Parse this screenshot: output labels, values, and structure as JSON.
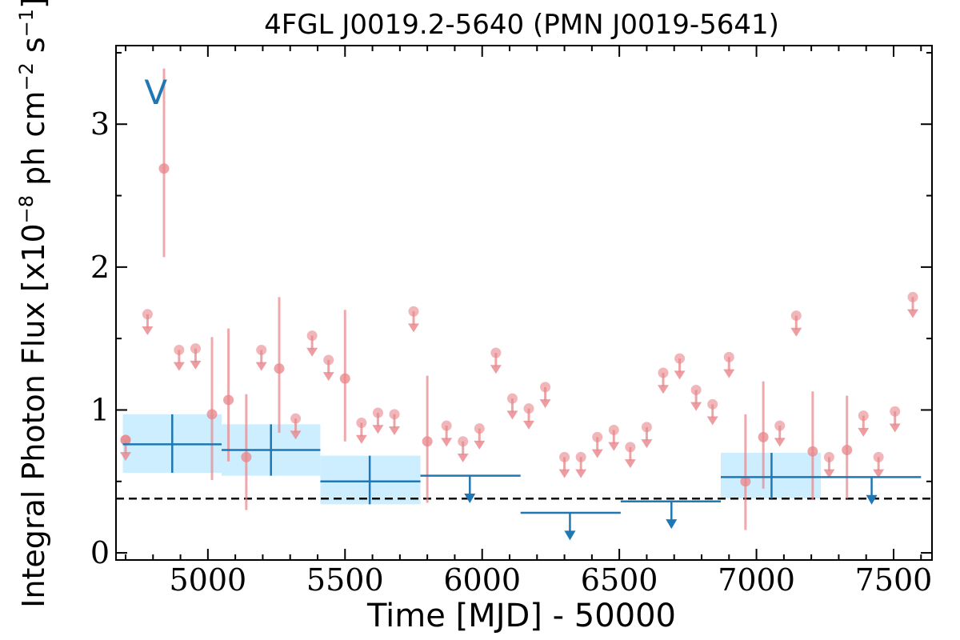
{
  "chart_data": {
    "type": "scatter",
    "title": "4FGL J0019.2-5640 (PMN J0019-5641)",
    "xlabel": "Time [MJD] - 50000",
    "ylabel": "Integral Photon Flux [x10^-8 ph cm^-2 s^-1]",
    "ylabel_parts": {
      "prefix": "Integral Photon Flux [x10",
      "exp1": "−8",
      "mid": " ph cm",
      "exp2": "−2",
      "mid2": " s",
      "exp3": "−1",
      "suffix": "]"
    },
    "xlim": [
      4665,
      7640
    ],
    "ylim": [
      -0.05,
      3.55
    ],
    "xticks": [
      5000,
      5500,
      6000,
      6500,
      7000,
      7500
    ],
    "yticks": [
      0,
      1,
      2,
      3
    ],
    "ytick_labels": [
      "0",
      "1",
      "2",
      "3"
    ],
    "variability_letter": "V",
    "variability_letter_pos": [
      4810,
      3.22
    ],
    "baseline_flux": 0.38,
    "colors": {
      "short_bins": "#e8858a",
      "long_bins": "#1f77b4",
      "long_band": "#cdeeff",
      "baseline": "#000000"
    },
    "series": [
      {
        "kind": "short_bins",
        "detections": [
          {
            "x": 4700,
            "y": 0.79
          },
          {
            "x": 4840,
            "y": 2.69,
            "ylo": 2.07,
            "yhi": 3.39
          },
          {
            "x": 5015,
            "y": 0.97,
            "ylo": 0.51,
            "yhi": 1.51
          },
          {
            "x": 5075,
            "y": 1.07,
            "ylo": 0.64,
            "yhi": 1.57
          },
          {
            "x": 5140,
            "y": 0.67,
            "ylo": 0.3,
            "yhi": 1.11
          },
          {
            "x": 5260,
            "y": 1.29,
            "ylo": 0.84,
            "yhi": 1.79
          },
          {
            "x": 5500,
            "y": 1.22,
            "ylo": 0.78,
            "yhi": 1.7
          },
          {
            "x": 5800,
            "y": 0.78,
            "ylo": 0.35,
            "yhi": 1.24
          },
          {
            "x": 6960,
            "y": 0.5,
            "ylo": 0.16,
            "yhi": 0.97
          },
          {
            "x": 7025,
            "y": 0.81,
            "ylo": 0.45,
            "yhi": 1.2
          },
          {
            "x": 7205,
            "y": 0.71,
            "ylo": 0.37,
            "yhi": 1.13
          },
          {
            "x": 7330,
            "y": 0.72,
            "ylo": 0.38,
            "yhi": 1.1
          }
        ],
        "upper_limits": [
          {
            "x": 4700,
            "y": 0.79
          },
          {
            "x": 4780,
            "y": 1.67
          },
          {
            "x": 4895,
            "y": 1.42
          },
          {
            "x": 4955,
            "y": 1.43
          },
          {
            "x": 5195,
            "y": 1.42
          },
          {
            "x": 5320,
            "y": 0.94
          },
          {
            "x": 5380,
            "y": 1.52
          },
          {
            "x": 5440,
            "y": 1.35
          },
          {
            "x": 5560,
            "y": 0.91
          },
          {
            "x": 5620,
            "y": 0.98
          },
          {
            "x": 5680,
            "y": 0.97
          },
          {
            "x": 5750,
            "y": 1.69
          },
          {
            "x": 5870,
            "y": 0.89
          },
          {
            "x": 5930,
            "y": 0.78
          },
          {
            "x": 5990,
            "y": 0.87
          },
          {
            "x": 6050,
            "y": 1.4
          },
          {
            "x": 6110,
            "y": 1.08
          },
          {
            "x": 6170,
            "y": 1.01
          },
          {
            "x": 6230,
            "y": 1.16
          },
          {
            "x": 6300,
            "y": 0.67
          },
          {
            "x": 6360,
            "y": 0.67
          },
          {
            "x": 6420,
            "y": 0.81
          },
          {
            "x": 6480,
            "y": 0.86
          },
          {
            "x": 6540,
            "y": 0.74
          },
          {
            "x": 6600,
            "y": 0.88
          },
          {
            "x": 6660,
            "y": 1.26
          },
          {
            "x": 6720,
            "y": 1.36
          },
          {
            "x": 6780,
            "y": 1.14
          },
          {
            "x": 6840,
            "y": 1.04
          },
          {
            "x": 6900,
            "y": 1.37
          },
          {
            "x": 7085,
            "y": 0.89
          },
          {
            "x": 7145,
            "y": 1.66
          },
          {
            "x": 7265,
            "y": 0.67
          },
          {
            "x": 7390,
            "y": 0.96
          },
          {
            "x": 7445,
            "y": 0.67
          },
          {
            "x": 7505,
            "y": 0.99
          },
          {
            "x": 7570,
            "y": 1.79
          }
        ]
      },
      {
        "kind": "long_bins",
        "detections": [
          {
            "x": 4870,
            "xlo": 4690,
            "xhi": 5050,
            "y": 0.76,
            "ylo": 0.56,
            "yhi": 0.97
          },
          {
            "x": 5230,
            "xlo": 5050,
            "xhi": 5410,
            "y": 0.72,
            "ylo": 0.54,
            "yhi": 0.9
          },
          {
            "x": 5590,
            "xlo": 5410,
            "xhi": 5775,
            "y": 0.5,
            "ylo": 0.34,
            "yhi": 0.68
          },
          {
            "x": 7055,
            "xlo": 6870,
            "xhi": 7235,
            "y": 0.53,
            "ylo": 0.38,
            "yhi": 0.7
          }
        ],
        "upper_limits": [
          {
            "x": 5955,
            "xlo": 5775,
            "xhi": 6140,
            "y": 0.54
          },
          {
            "x": 6320,
            "xlo": 6140,
            "xhi": 6505,
            "y": 0.28
          },
          {
            "x": 6690,
            "xlo": 6505,
            "xhi": 6870,
            "y": 0.36
          },
          {
            "x": 7420,
            "xlo": 7235,
            "xhi": 7600,
            "y": 0.53
          }
        ]
      }
    ]
  }
}
